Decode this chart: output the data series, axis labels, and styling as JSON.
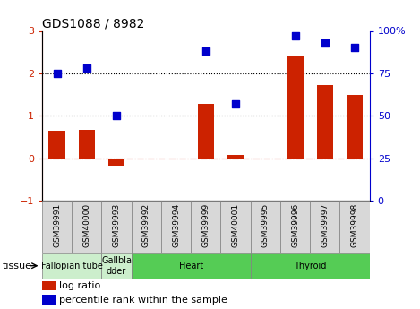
{
  "title": "GDS1088 / 8982",
  "samples": [
    "GSM39991",
    "GSM40000",
    "GSM39993",
    "GSM39992",
    "GSM39994",
    "GSM39999",
    "GSM40001",
    "GSM39995",
    "GSM39996",
    "GSM39997",
    "GSM39998"
  ],
  "log_ratio": [
    0.65,
    0.68,
    -0.18,
    0.0,
    0.0,
    1.28,
    0.08,
    0.0,
    2.42,
    1.72,
    1.5
  ],
  "percentile_rank": [
    75,
    78,
    50,
    null,
    null,
    88,
    57,
    null,
    97,
    93,
    90
  ],
  "tissues": [
    {
      "label": "Fallopian tube",
      "start": 0,
      "end": 2,
      "color": "#cceecc"
    },
    {
      "label": "Gallbla\ndder",
      "start": 2,
      "end": 3,
      "color": "#cceecc"
    },
    {
      "label": "Heart",
      "start": 3,
      "end": 7,
      "color": "#55cc55"
    },
    {
      "label": "Thyroid",
      "start": 7,
      "end": 11,
      "color": "#55cc55"
    }
  ],
  "bar_color": "#cc2200",
  "scatter_color": "#0000cc",
  "ylim_left": [
    -1,
    3
  ],
  "ylim_right": [
    0,
    100
  ],
  "left_yticks": [
    -1,
    0,
    1,
    2,
    3
  ],
  "right_yticks": [
    0,
    25,
    50,
    75,
    100
  ],
  "right_yticklabels": [
    "0",
    "25",
    "50",
    "75",
    "100%"
  ],
  "background_color": "#ffffff",
  "legend_red_label": "log ratio",
  "legend_blue_label": "percentile rank within the sample",
  "sample_bg_color": "#d8d8d8",
  "fallopian_color": "#cceecc",
  "gallbladder_color": "#cceecc",
  "heart_color": "#55cc55",
  "thyroid_color": "#55cc55"
}
